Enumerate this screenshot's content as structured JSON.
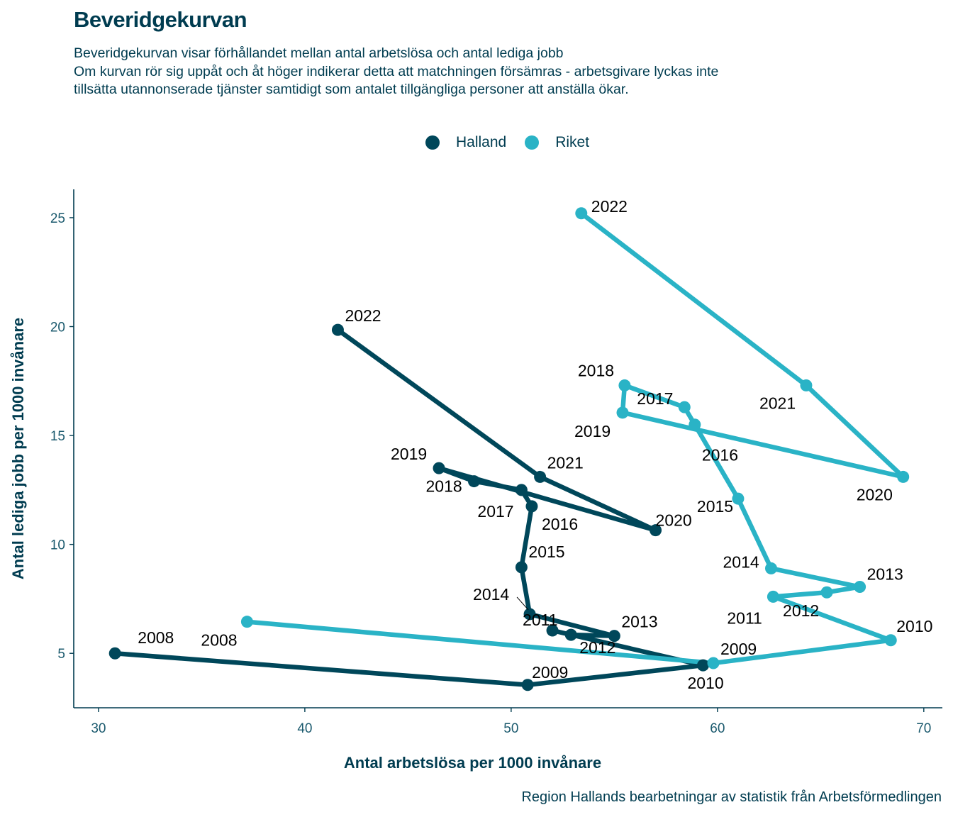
{
  "title": "Beveridgekurvan",
  "subtitle": [
    "Beveridgekurvan visar förhållandet mellan antal arbetslösa och antal lediga jobb",
    "Om kurvan rör sig uppåt och åt höger indikerar detta att matchningen försämras - arbetsgivare lyckas inte",
    "tillsätta utannonserade tjänster samtidigt som antalet tillgängliga personer att anställa ökar."
  ],
  "caption": "Region Hallands bearbetningar av statistik från Arbetsförmedlingen",
  "colors": {
    "Halland": "#00475a",
    "Riket": "#2ab3c6",
    "axis": "#003c50"
  },
  "chart_data": {
    "type": "line",
    "xlabel": "Antal arbetslösa per 1000 invånare",
    "ylabel": "Antal lediga jobb per 1000 invånare",
    "xlim": [
      28.8,
      70.9
    ],
    "ylim": [
      2.5,
      26.3
    ],
    "xticks": [
      30,
      40,
      50,
      60,
      70
    ],
    "yticks": [
      5,
      10,
      15,
      20,
      25
    ],
    "legend": "top",
    "grid": false,
    "series": [
      {
        "name": "Halland",
        "points": [
          {
            "year": "2008",
            "x": 30.8,
            "y": 5.0
          },
          {
            "year": "2009",
            "x": 50.8,
            "y": 3.55
          },
          {
            "year": "2010",
            "x": 59.3,
            "y": 4.45
          },
          {
            "year": "2011",
            "x": 52.0,
            "y": 6.05
          },
          {
            "year": "2012",
            "x": 52.9,
            "y": 5.85
          },
          {
            "year": "2013",
            "x": 55.0,
            "y": 5.8
          },
          {
            "year": "2014",
            "x": 50.9,
            "y": 6.8
          },
          {
            "year": "2015",
            "x": 50.5,
            "y": 8.95
          },
          {
            "year": "2016",
            "x": 51.0,
            "y": 11.75
          },
          {
            "year": "2017",
            "x": 50.5,
            "y": 12.5
          },
          {
            "year": "2018",
            "x": 48.2,
            "y": 12.9
          },
          {
            "year": "2019",
            "x": 46.5,
            "y": 13.5
          },
          {
            "year": "2020",
            "x": 57.0,
            "y": 10.65
          },
          {
            "year": "2021",
            "x": 51.4,
            "y": 13.1
          },
          {
            "year": "2022",
            "x": 41.6,
            "y": 19.85
          }
        ]
      },
      {
        "name": "Riket",
        "points": [
          {
            "year": "2008",
            "x": 37.2,
            "y": 6.45
          },
          {
            "year": "2009",
            "x": 59.8,
            "y": 4.55
          },
          {
            "year": "2010",
            "x": 68.4,
            "y": 5.6
          },
          {
            "year": "2011",
            "x": 62.7,
            "y": 7.6
          },
          {
            "year": "2012",
            "x": 65.3,
            "y": 7.8
          },
          {
            "year": "2013",
            "x": 66.9,
            "y": 8.05
          },
          {
            "year": "2014",
            "x": 62.6,
            "y": 8.9
          },
          {
            "year": "2015",
            "x": 61.0,
            "y": 12.1
          },
          {
            "year": "2016",
            "x": 58.9,
            "y": 15.5
          },
          {
            "year": "2017",
            "x": 58.4,
            "y": 16.3
          },
          {
            "year": "2018",
            "x": 55.5,
            "y": 17.3
          },
          {
            "year": "2019",
            "x": 55.4,
            "y": 16.05
          },
          {
            "year": "2020",
            "x": 69.0,
            "y": 13.1
          },
          {
            "year": "2021",
            "x": 64.3,
            "y": 17.3
          },
          {
            "year": "2022",
            "x": 53.4,
            "y": 25.2
          }
        ]
      }
    ]
  }
}
